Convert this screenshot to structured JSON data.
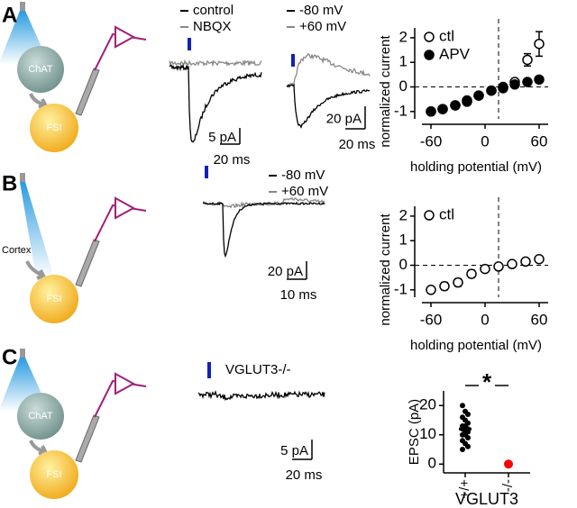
{
  "panels": [
    {
      "label": "A",
      "cells": [
        "ChAT",
        "FSI"
      ],
      "traces": [
        {
          "legend": [
            "control",
            "NBQX"
          ],
          "scale": [
            "5 pA",
            "20 ms"
          ]
        },
        {
          "legend": [
            "-80 mV",
            "+60 mV"
          ],
          "scale": [
            "20 pA",
            "20 ms"
          ]
        }
      ]
    },
    {
      "label": "B",
      "cells": [
        "FSI"
      ],
      "region": "Cortex",
      "traces": [
        {
          "legend": [
            "-80 mV",
            "+60 mV"
          ],
          "scale": [
            "20 pA",
            "10 ms"
          ]
        }
      ]
    },
    {
      "label": "C",
      "cells": [
        "ChAT",
        "FSI"
      ],
      "traces": [
        {
          "legend": [
            "VGLUT3-/-"
          ],
          "scale": [
            "5 pA",
            "20 ms"
          ]
        }
      ]
    }
  ],
  "chart_data": [
    {
      "type": "scatter",
      "xlabel": "holding potential (mV)",
      "ylabel": "normalized current",
      "x": [
        -60,
        -47,
        -33,
        -20,
        -7,
        7,
        20,
        33,
        47,
        60
      ],
      "series": [
        {
          "name": "ctl",
          "marker": "open",
          "color": "#000000",
          "values": [
            -1.0,
            -0.9,
            -0.75,
            -0.6,
            -0.35,
            -0.15,
            0.0,
            0.2,
            1.1,
            1.75
          ],
          "errors": [
            null,
            null,
            null,
            null,
            null,
            null,
            null,
            null,
            0.25,
            0.5
          ]
        },
        {
          "name": "APV",
          "marker": "filled",
          "color": "#000000",
          "values": [
            -1.0,
            -0.9,
            -0.75,
            -0.55,
            -0.35,
            -0.15,
            -0.05,
            0.1,
            0.2,
            0.3
          ]
        }
      ],
      "xlim": [
        -70,
        70
      ],
      "ylim": [
        -1.3,
        2.4
      ],
      "xticks": [
        -60,
        0,
        60
      ],
      "yticks": [
        -1,
        0,
        1,
        2
      ],
      "vline": 15,
      "hline": 0,
      "legend": "upper left"
    },
    {
      "type": "scatter",
      "xlabel": "holding potential (mV)",
      "ylabel": "normalized current",
      "x": [
        -60,
        -45,
        -30,
        -15,
        0,
        15,
        30,
        45,
        60
      ],
      "series": [
        {
          "name": "ctl",
          "marker": "open",
          "color": "#000000",
          "values": [
            -1.0,
            -0.85,
            -0.7,
            -0.35,
            -0.15,
            -0.05,
            0.05,
            0.15,
            0.25
          ],
          "errors": [
            null,
            0.15,
            0.15,
            0.15,
            null,
            null,
            null,
            null,
            null
          ]
        }
      ],
      "xlim": [
        -70,
        70
      ],
      "ylim": [
        -1.3,
        2.4
      ],
      "xticks": [
        -60,
        0,
        60
      ],
      "yticks": [
        -1,
        0,
        1,
        2
      ],
      "vline": 15,
      "hline": 0,
      "legend": "upper left"
    },
    {
      "type": "strip",
      "ylabel": "EPSC (pA)",
      "xlabel": "VGLUT3",
      "categories": [
        "+/+",
        "-/-"
      ],
      "groups": [
        {
          "color": "#000000",
          "values": [
            20,
            18,
            17,
            16,
            15,
            14,
            13,
            13,
            12,
            12,
            11,
            11,
            10,
            10,
            9,
            8,
            7,
            6,
            5
          ],
          "mean": 12,
          "error": 1.5
        },
        {
          "color": "#ff0000",
          "values": [
            0
          ]
        }
      ],
      "ylim": [
        -3,
        25
      ],
      "yticks": [
        0,
        10,
        20
      ],
      "annotation": "*"
    }
  ]
}
